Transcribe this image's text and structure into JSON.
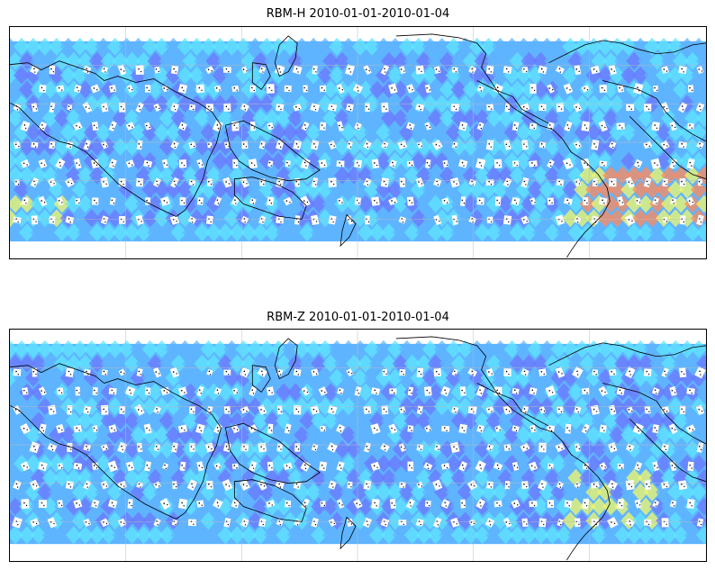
{
  "panels": [
    {
      "id": "top",
      "title": "RBM-H 2010-01-01-2010-01-04",
      "variant": "H"
    },
    {
      "id": "bottom",
      "title": "RBM-Z 2010-01-01-2010-01-04",
      "variant": "Z"
    }
  ],
  "colors": {
    "cyan": "#5fe6ff",
    "mid": "#5fb4ff",
    "blue": "#6b78ff",
    "yellow": "#f2f86a",
    "orange": "#ff8a5a",
    "coast": "#000000"
  }
}
